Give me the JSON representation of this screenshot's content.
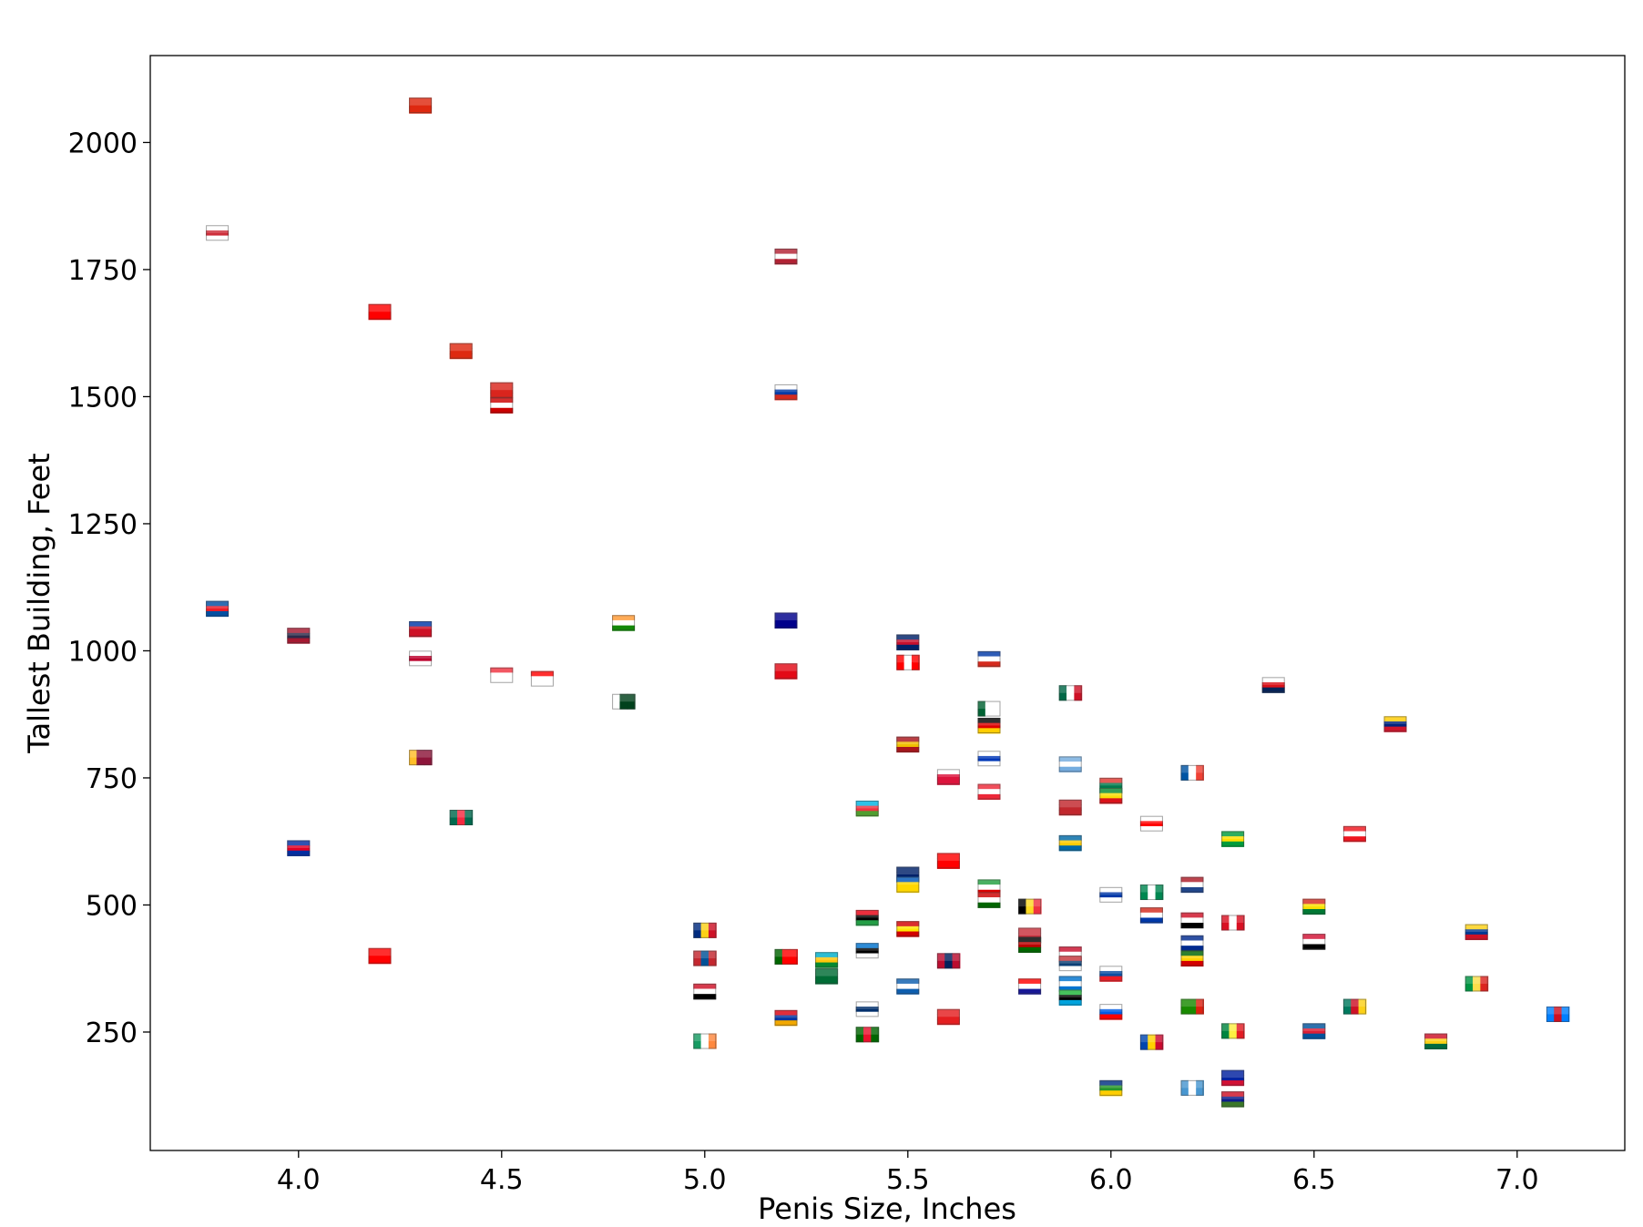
{
  "chart_data": {
    "type": "scatter",
    "title": "",
    "xlabel": "Penis Size, Inches",
    "ylabel": "Tallest Building, Feet",
    "xlim": [
      3.635,
      7.265
    ],
    "ylim": [
      17,
      2171
    ],
    "xticks": [
      "4.0",
      "4.5",
      "5.0",
      "5.5",
      "6.0",
      "6.5",
      "7.0"
    ],
    "yticks": [
      "250",
      "500",
      "750",
      "1000",
      "1250",
      "1500",
      "1750",
      "2000"
    ],
    "grid": false,
    "marker": "country-flag",
    "points": [
      {
        "c": "China",
        "x": 4.3,
        "y": 2073,
        "f": [
          "#de2910",
          "#de2910",
          "#de2910"
        ],
        "d": "h"
      },
      {
        "c": "South Korea",
        "x": 3.8,
        "y": 1822,
        "f": [
          "#ffffff",
          "#cd2e3a",
          "#ffffff"
        ],
        "d": "h"
      },
      {
        "c": "Taiwan",
        "x": 4.2,
        "y": 1667,
        "f": [
          "#fe0000",
          "#fe0000",
          "#fe0000"
        ],
        "d": "h"
      },
      {
        "c": "Hong Kong",
        "x": 4.4,
        "y": 1590,
        "f": [
          "#de2910",
          "#de2910",
          "#de2910"
        ],
        "d": "h"
      },
      {
        "c": "Vietnam",
        "x": 4.5,
        "y": 1513,
        "f": [
          "#da251d",
          "#da251d",
          "#da251d"
        ],
        "d": "h"
      },
      {
        "c": "Malaysia",
        "x": 4.5,
        "y": 1483,
        "f": [
          "#cc0001",
          "#ffffff",
          "#cc0001"
        ],
        "d": "h"
      },
      {
        "c": "United States",
        "x": 5.2,
        "y": 1776,
        "f": [
          "#b22234",
          "#ffffff",
          "#b22234"
        ],
        "d": "h"
      },
      {
        "c": "Russia",
        "x": 5.2,
        "y": 1509,
        "f": [
          "#ffffff",
          "#0039a6",
          "#d52b1e"
        ],
        "d": "h"
      },
      {
        "c": "North Korea",
        "x": 3.8,
        "y": 1083,
        "f": [
          "#024fa2",
          "#ed1c27",
          "#024fa2"
        ],
        "d": "h"
      },
      {
        "c": "Thailand",
        "x": 4.0,
        "y": 1030,
        "f": [
          "#a51931",
          "#2d2a4a",
          "#a51931"
        ],
        "d": "h"
      },
      {
        "c": "Philippines",
        "x": 4.3,
        "y": 1043,
        "f": [
          "#0038a8",
          "#ce1126",
          "#ce1126"
        ],
        "d": "h"
      },
      {
        "c": "Japan",
        "x": 4.3,
        "y": 985,
        "f": [
          "#ffffff",
          "#bc002d",
          "#ffffff"
        ],
        "d": "h"
      },
      {
        "c": "Singapore",
        "x": 4.5,
        "y": 952,
        "f": [
          "#ef3340",
          "#ffffff",
          "#ffffff"
        ],
        "d": "h"
      },
      {
        "c": "Indonesia",
        "x": 4.6,
        "y": 945,
        "f": [
          "#ff0000",
          "#ffffff",
          "#ffffff"
        ],
        "d": "h"
      },
      {
        "c": "India",
        "x": 4.8,
        "y": 1055,
        "f": [
          "#ff9933",
          "#ffffff",
          "#138808"
        ],
        "d": "h"
      },
      {
        "c": "Pakistan",
        "x": 4.8,
        "y": 900,
        "f": [
          "#ffffff",
          "#01411c",
          "#01411c"
        ],
        "d": "v"
      },
      {
        "c": "Australia",
        "x": 5.2,
        "y": 1060,
        "f": [
          "#00008b",
          "#00008b",
          "#00008b"
        ],
        "d": "h"
      },
      {
        "c": "Turkey",
        "x": 5.2,
        "y": 960,
        "f": [
          "#e30a17",
          "#e30a17",
          "#e30a17"
        ],
        "d": "h"
      },
      {
        "c": "United Kingdom",
        "x": 5.5,
        "y": 1017,
        "f": [
          "#012169",
          "#c8102e",
          "#012169"
        ],
        "d": "h"
      },
      {
        "c": "Canada",
        "x": 5.5,
        "y": 977,
        "f": [
          "#ff0000",
          "#ffffff",
          "#ff0000"
        ],
        "d": "v"
      },
      {
        "c": "Chile",
        "x": 5.7,
        "y": 984,
        "f": [
          "#0039a6",
          "#ffffff",
          "#d52b1e"
        ],
        "d": "h"
      },
      {
        "c": "Mexico",
        "x": 5.9,
        "y": 917,
        "f": [
          "#006847",
          "#ffffff",
          "#ce1126"
        ],
        "d": "v"
      },
      {
        "c": "Panama",
        "x": 6.4,
        "y": 933,
        "f": [
          "#ffffff",
          "#da121a",
          "#072357"
        ],
        "d": "h"
      },
      {
        "c": "Venezuela",
        "x": 6.7,
        "y": 856,
        "f": [
          "#ffcc00",
          "#00247d",
          "#cf142b"
        ],
        "d": "h"
      },
      {
        "c": "Algeria",
        "x": 5.7,
        "y": 886,
        "f": [
          "#006233",
          "#ffffff",
          "#ffffff"
        ],
        "d": "v"
      },
      {
        "c": "Germany",
        "x": 5.7,
        "y": 853,
        "f": [
          "#000000",
          "#dd0000",
          "#ffce00"
        ],
        "d": "h"
      },
      {
        "c": "Spain",
        "x": 5.5,
        "y": 816,
        "f": [
          "#aa151b",
          "#f1bf00",
          "#aa151b"
        ],
        "d": "h"
      },
      {
        "c": "Israel",
        "x": 5.7,
        "y": 788,
        "f": [
          "#ffffff",
          "#0038b8",
          "#ffffff"
        ],
        "d": "h"
      },
      {
        "c": "Argentina",
        "x": 5.9,
        "y": 777,
        "f": [
          "#74acdf",
          "#ffffff",
          "#74acdf"
        ],
        "d": "h"
      },
      {
        "c": "France",
        "x": 6.2,
        "y": 760,
        "f": [
          "#0055a4",
          "#ffffff",
          "#ef4135"
        ],
        "d": "v"
      },
      {
        "c": "Poland",
        "x": 5.6,
        "y": 752,
        "f": [
          "#ffffff",
          "#dc143c",
          "#dc143c"
        ],
        "d": "h"
      },
      {
        "c": "Austria",
        "x": 5.7,
        "y": 723,
        "f": [
          "#ed2939",
          "#ffffff",
          "#ed2939"
        ],
        "d": "h"
      },
      {
        "c": "South Africa",
        "x": 6.0,
        "y": 735,
        "f": [
          "#de3831",
          "#007a4d",
          "#002395"
        ],
        "d": "h"
      },
      {
        "c": "Ethiopia",
        "x": 6.0,
        "y": 715,
        "f": [
          "#078930",
          "#fcdd09",
          "#da121a"
        ],
        "d": "h"
      },
      {
        "c": "Azerbaijan",
        "x": 5.4,
        "y": 690,
        "f": [
          "#00b5e2",
          "#ef3340",
          "#509e2f"
        ],
        "d": "h"
      },
      {
        "c": "Morocco",
        "x": 5.9,
        "y": 692,
        "f": [
          "#c1272d",
          "#c1272d",
          "#c1272d"
        ],
        "d": "h"
      },
      {
        "c": "Sri Lanka",
        "x": 4.3,
        "y": 790,
        "f": [
          "#ffbe29",
          "#8d153a",
          "#8d153a"
        ],
        "d": "v"
      },
      {
        "c": "Bangladesh",
        "x": 4.4,
        "y": 672,
        "f": [
          "#006a4e",
          "#f42a41",
          "#006a4e"
        ],
        "d": "v"
      },
      {
        "c": "Cambodia",
        "x": 4.0,
        "y": 612,
        "f": [
          "#032ea1",
          "#e00025",
          "#032ea1"
        ],
        "d": "h"
      },
      {
        "c": "Georgia",
        "x": 6.1,
        "y": 660,
        "f": [
          "#ffffff",
          "#ff0000",
          "#ffffff"
        ],
        "d": "h"
      },
      {
        "c": "Brazil",
        "x": 6.3,
        "y": 630,
        "f": [
          "#009c3b",
          "#ffdf00",
          "#009c3b"
        ],
        "d": "h"
      },
      {
        "c": "Sweden",
        "x": 5.9,
        "y": 622,
        "f": [
          "#006aa7",
          "#fecc00",
          "#006aa7"
        ],
        "d": "h"
      },
      {
        "c": "Lebanon",
        "x": 6.6,
        "y": 640,
        "f": [
          "#ee161f",
          "#ffffff",
          "#ee161f"
        ],
        "d": "h"
      },
      {
        "c": "Switzerland",
        "x": 5.6,
        "y": 587,
        "f": [
          "#ff0000",
          "#ff0000",
          "#ff0000"
        ],
        "d": "h"
      },
      {
        "c": "New Zealand",
        "x": 5.5,
        "y": 560,
        "f": [
          "#012169",
          "#012169",
          "#012169"
        ],
        "d": "h"
      },
      {
        "c": "Ukraine",
        "x": 5.5,
        "y": 540,
        "f": [
          "#0057b7",
          "#ffd700",
          "#ffd700"
        ],
        "d": "h"
      },
      {
        "c": "Iran",
        "x": 5.7,
        "y": 535,
        "f": [
          "#239f40",
          "#ffffff",
          "#da0000"
        ],
        "d": "h"
      },
      {
        "c": "Tajikistan",
        "x": 5.7,
        "y": 510,
        "f": [
          "#cc0000",
          "#ffffff",
          "#006600"
        ],
        "d": "h"
      },
      {
        "c": "Netherlands",
        "x": 6.2,
        "y": 540,
        "f": [
          "#ae1c28",
          "#ffffff",
          "#21468b"
        ],
        "d": "h"
      },
      {
        "c": "Uruguay",
        "x": 6.0,
        "y": 520,
        "f": [
          "#ffffff",
          "#0038a8",
          "#ffffff"
        ],
        "d": "h"
      },
      {
        "c": "Nigeria",
        "x": 6.1,
        "y": 525,
        "f": [
          "#008751",
          "#ffffff",
          "#008751"
        ],
        "d": "v"
      },
      {
        "c": "Belgium",
        "x": 5.8,
        "y": 497,
        "f": [
          "#000000",
          "#fdda24",
          "#ef3340"
        ],
        "d": "v"
      },
      {
        "c": "Bolivia",
        "x": 6.5,
        "y": 497,
        "f": [
          "#d52b1e",
          "#f9e300",
          "#007934"
        ],
        "d": "h"
      },
      {
        "c": "Libya",
        "x": 5.4,
        "y": 475,
        "f": [
          "#e70013",
          "#000000",
          "#239e46"
        ],
        "d": "h"
      },
      {
        "c": "Paraguay",
        "x": 6.1,
        "y": 480,
        "f": [
          "#d52b1e",
          "#ffffff",
          "#0038a8"
        ],
        "d": "h"
      },
      {
        "c": "Egypt",
        "x": 6.2,
        "y": 470,
        "f": [
          "#ce1126",
          "#ffffff",
          "#000000"
        ],
        "d": "h"
      },
      {
        "c": "Peru",
        "x": 6.3,
        "y": 465,
        "f": [
          "#d91023",
          "#ffffff",
          "#d91023"
        ],
        "d": "v"
      },
      {
        "c": "Romania",
        "x": 5.0,
        "y": 450,
        "f": [
          "#002b7f",
          "#fcd116",
          "#ce1126"
        ],
        "d": "v"
      },
      {
        "c": "North Macedonia",
        "x": 5.5,
        "y": 453,
        "f": [
          "#d20000",
          "#ffe600",
          "#d20000"
        ],
        "d": "h"
      },
      {
        "c": "Colombia",
        "x": 6.9,
        "y": 447,
        "f": [
          "#fcd116",
          "#003893",
          "#ce1126"
        ],
        "d": "h"
      },
      {
        "c": "Belarus",
        "x": 5.8,
        "y": 440,
        "f": [
          "#c8313e",
          "#c8313e",
          "#4aa657"
        ],
        "d": "h"
      },
      {
        "c": "Kenya",
        "x": 5.8,
        "y": 422,
        "f": [
          "#000000",
          "#bb0000",
          "#006600"
        ],
        "d": "h"
      },
      {
        "c": "Cuba",
        "x": 6.2,
        "y": 425,
        "f": [
          "#002a8f",
          "#ffffff",
          "#002a8f"
        ],
        "d": "h"
      },
      {
        "c": "Sudan",
        "x": 6.5,
        "y": 428,
        "f": [
          "#d21034",
          "#ffffff",
          "#000000"
        ],
        "d": "h"
      },
      {
        "c": "Mongolia",
        "x": 5.0,
        "y": 395,
        "f": [
          "#c4272f",
          "#015197",
          "#c4272f"
        ],
        "d": "v"
      },
      {
        "c": "Portugal",
        "x": 5.2,
        "y": 398,
        "f": [
          "#006600",
          "#ff0000",
          "#ff0000"
        ],
        "d": "v"
      },
      {
        "c": "Kazakhstan",
        "x": 5.3,
        "y": 392,
        "f": [
          "#00afca",
          "#fec50c",
          "#078930"
        ],
        "d": "h"
      },
      {
        "c": "Estonia",
        "x": 5.4,
        "y": 410,
        "f": [
          "#0072ce",
          "#000000",
          "#ffffff"
        ],
        "d": "h"
      },
      {
        "c": "Myanmar",
        "x": 4.2,
        "y": 400,
        "f": [
          "#ff0000",
          "#ff0000",
          "#ff0000"
        ],
        "d": "h"
      },
      {
        "c": "Norway",
        "x": 5.6,
        "y": 390,
        "f": [
          "#ba0c2f",
          "#00205b",
          "#ba0c2f"
        ],
        "d": "v"
      },
      {
        "c": "Denmark",
        "x": 5.9,
        "y": 403,
        "f": [
          "#c8102e",
          "#ffffff",
          "#c8102e"
        ],
        "d": "h"
      },
      {
        "c": "Serbia",
        "x": 5.9,
        "y": 385,
        "f": [
          "#c6363c",
          "#0c4076",
          "#ffffff"
        ],
        "d": "h"
      },
      {
        "c": "Zimbabwe",
        "x": 6.2,
        "y": 395,
        "f": [
          "#006400",
          "#ffd200",
          "#d40000"
        ],
        "d": "h"
      },
      {
        "c": "Saudi Arabia",
        "x": 5.3,
        "y": 360,
        "f": [
          "#006c35",
          "#006c35",
          "#006c35"
        ],
        "d": "h"
      },
      {
        "c": "Slovakia",
        "x": 6.0,
        "y": 365,
        "f": [
          "#ffffff",
          "#0b4ea2",
          "#ee1c25"
        ],
        "d": "h"
      },
      {
        "c": "Republic of the Congo",
        "x": 6.9,
        "y": 345,
        "f": [
          "#009543",
          "#fbde4a",
          "#dc241f"
        ],
        "d": "v"
      },
      {
        "c": "Greece",
        "x": 5.5,
        "y": 340,
        "f": [
          "#0d5eaf",
          "#ffffff",
          "#0d5eaf"
        ],
        "d": "h"
      },
      {
        "c": "Croatia",
        "x": 5.8,
        "y": 340,
        "f": [
          "#ff0000",
          "#ffffff",
          "#171796"
        ],
        "d": "h"
      },
      {
        "c": "Honduras",
        "x": 5.9,
        "y": 345,
        "f": [
          "#0073cf",
          "#ffffff",
          "#0073cf"
        ],
        "d": "h"
      },
      {
        "c": "Yemen",
        "x": 5.0,
        "y": 330,
        "f": [
          "#ce1126",
          "#ffffff",
          "#000000"
        ],
        "d": "h"
      },
      {
        "c": "Tanzania",
        "x": 5.9,
        "y": 318,
        "f": [
          "#1eb53a",
          "#000000",
          "#00a3dd"
        ],
        "d": "h"
      },
      {
        "c": "Finland",
        "x": 5.4,
        "y": 295,
        "f": [
          "#ffffff",
          "#002f6c",
          "#ffffff"
        ],
        "d": "h"
      },
      {
        "c": "Slovenia",
        "x": 6.0,
        "y": 290,
        "f": [
          "#ffffff",
          "#005ce5",
          "#ff0000"
        ],
        "d": "h"
      },
      {
        "c": "Zambia",
        "x": 6.2,
        "y": 300,
        "f": [
          "#198a00",
          "#198a00",
          "#de2010"
        ],
        "d": "v"
      },
      {
        "c": "Cameroon",
        "x": 6.6,
        "y": 300,
        "f": [
          "#007a5e",
          "#ce1126",
          "#fcd116"
        ],
        "d": "v"
      },
      {
        "c": "DR Congo",
        "x": 7.1,
        "y": 285,
        "f": [
          "#007fff",
          "#ce1021",
          "#007fff"
        ],
        "d": "v"
      },
      {
        "c": "Armenia",
        "x": 5.2,
        "y": 278,
        "f": [
          "#d90012",
          "#0033a0",
          "#f2a800"
        ],
        "d": "h"
      },
      {
        "c": "Albania",
        "x": 5.6,
        "y": 280,
        "f": [
          "#e41e20",
          "#e41e20",
          "#e41e20"
        ],
        "d": "h"
      },
      {
        "c": "Senegal",
        "x": 6.3,
        "y": 252,
        "f": [
          "#00853f",
          "#fdef42",
          "#e31b23"
        ],
        "d": "v"
      },
      {
        "c": "Iceland",
        "x": 6.5,
        "y": 252,
        "f": [
          "#02529c",
          "#dc1e35",
          "#02529c"
        ],
        "d": "h"
      },
      {
        "c": "Kyrgyzstan",
        "x": 5.4,
        "y": 245,
        "f": [
          "#006600",
          "#e8112d",
          "#006600"
        ],
        "d": "v"
      },
      {
        "c": "Ireland",
        "x": 5.0,
        "y": 232,
        "f": [
          "#169b62",
          "#ffffff",
          "#ff883e"
        ],
        "d": "v"
      },
      {
        "c": "Moldova",
        "x": 6.1,
        "y": 230,
        "f": [
          "#0046ae",
          "#ffd200",
          "#cc092f"
        ],
        "d": "v"
      },
      {
        "c": "Ghana",
        "x": 6.8,
        "y": 232,
        "f": [
          "#ce1126",
          "#fcd116",
          "#006b3f"
        ],
        "d": "h"
      },
      {
        "c": "Central African Republic",
        "x": 6.0,
        "y": 140,
        "f": [
          "#003082",
          "#289728",
          "#ffce00"
        ],
        "d": "h"
      },
      {
        "c": "Guatemala",
        "x": 6.2,
        "y": 140,
        "f": [
          "#4997d0",
          "#ffffff",
          "#4997d0"
        ],
        "d": "v"
      },
      {
        "c": "Haiti",
        "x": 6.3,
        "y": 160,
        "f": [
          "#00209f",
          "#00209f",
          "#d21034"
        ],
        "d": "h"
      },
      {
        "c": "Gambia",
        "x": 6.3,
        "y": 118,
        "f": [
          "#ce1126",
          "#0c1c8c",
          "#3a7728"
        ],
        "d": "h"
      }
    ]
  }
}
